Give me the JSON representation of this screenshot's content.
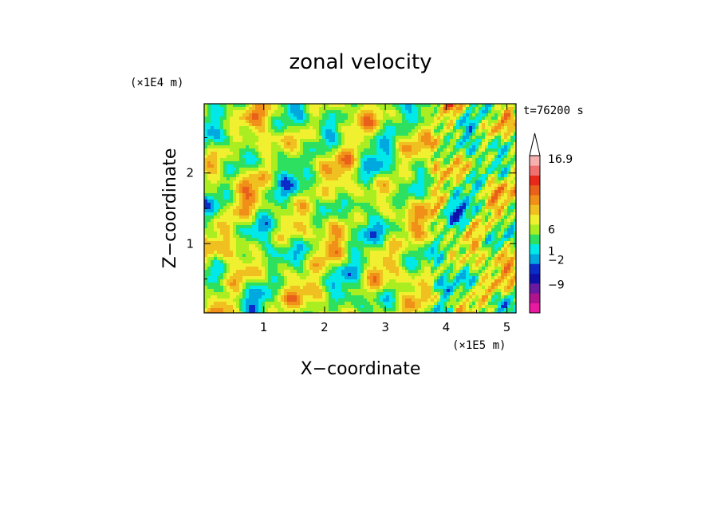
{
  "chart_data": {
    "type": "heatmap",
    "title": "zonal velocity",
    "xlabel": "X−coordinate",
    "ylabel": "Z−coordinate",
    "x_scale_note": "(×1E5 m)",
    "y_scale_note": "(×1E4 m)",
    "time_label": "t=76200 s",
    "xlim": [
      0.02,
      5.15
    ],
    "ylim": [
      0.02,
      2.98
    ],
    "x_ticks": [
      1,
      2,
      3,
      4,
      5
    ],
    "y_ticks": [
      1,
      2
    ],
    "colorbar": {
      "labels": [
        "16.9",
        "6",
        "1",
        "−2",
        "−9"
      ],
      "levels": [
        -9,
        -2,
        1,
        6,
        16.9
      ],
      "colors": [
        "#e81aa0",
        "#b0148c",
        "#6a1aa0",
        "#1010a8",
        "#0a2cc8",
        "#00a8e0",
        "#00e8e8",
        "#2ee060",
        "#aaee22",
        "#f0f030",
        "#f0c020",
        "#f09018",
        "#e8601a",
        "#e8281a",
        "#f07070",
        "#f6b0b0"
      ],
      "extend_max": true
    }
  }
}
